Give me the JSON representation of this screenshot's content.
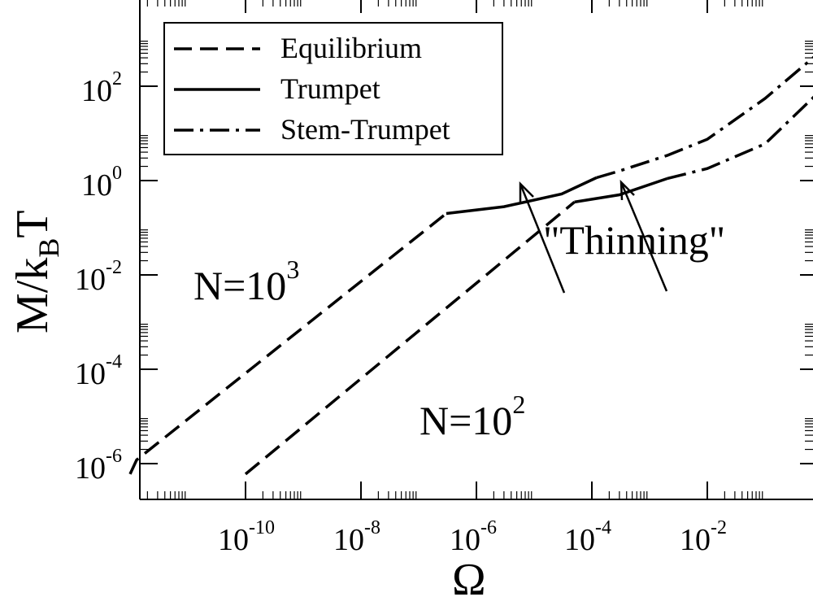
{
  "chart_data": {
    "type": "line",
    "title": "",
    "xlabel": "Ω",
    "ylabel": "M/k_BT",
    "ylabel_parts": {
      "main": "M/k",
      "subscript": "B",
      "tail": "T"
    },
    "x_scale": "log",
    "y_scale": "log",
    "xlim": [
      1e-12,
      1
    ],
    "ylim": [
      3e-07,
      5000
    ],
    "x_ticks": [
      {
        "base": "10",
        "exp": "-10",
        "value": 1e-10
      },
      {
        "base": "10",
        "exp": "-8",
        "value": 1e-08
      },
      {
        "base": "10",
        "exp": "-6",
        "value": 1e-06
      },
      {
        "base": "10",
        "exp": "-4",
        "value": 0.0001
      },
      {
        "base": "10",
        "exp": "-2",
        "value": 0.01
      }
    ],
    "y_ticks": [
      {
        "base": "10",
        "exp": "-6",
        "value": 1e-06
      },
      {
        "base": "10",
        "exp": "-4",
        "value": 0.0001
      },
      {
        "base": "10",
        "exp": "-2",
        "value": 0.01
      },
      {
        "base": "10",
        "exp": "0",
        "value": 1
      },
      {
        "base": "10",
        "exp": "2",
        "value": 100
      }
    ],
    "legend": {
      "placement": "top-left",
      "entries": [
        {
          "label": "Equilibrium",
          "style": "dashed"
        },
        {
          "label": "Trumpet",
          "style": "solid"
        },
        {
          "label": "Stem-Trumpet",
          "style": "dashdot"
        }
      ]
    },
    "series": [
      {
        "name": "Equilibrium",
        "group": "N=10^3",
        "style": "dashed",
        "x": [
          1e-12,
          1.3e-12,
          3e-07
        ],
        "y": [
          6e-07,
          1.2e-06,
          0.2
        ]
      },
      {
        "name": "Trumpet",
        "group": "N=10^3",
        "style": "solid",
        "x": [
          3e-07,
          3e-06,
          3e-05,
          0.00012
        ],
        "y": [
          0.2,
          0.28,
          0.52,
          1.15
        ]
      },
      {
        "name": "Stem-Trumpet",
        "group": "N=10^3",
        "style": "dashdot",
        "x": [
          0.00012,
          0.0003,
          0.002,
          0.01,
          0.1,
          1
        ],
        "y": [
          1.15,
          1.6,
          3.4,
          7.5,
          55,
          600
        ]
      },
      {
        "name": "Equilibrium",
        "group": "N=10^2",
        "style": "dashed",
        "x": [
          1e-10,
          5e-05
        ],
        "y": [
          6e-07,
          0.35
        ]
      },
      {
        "name": "Trumpet",
        "group": "N=10^2",
        "style": "solid",
        "x": [
          5e-05,
          0.0003,
          0.002
        ],
        "y": [
          0.35,
          0.5,
          1.1
        ]
      },
      {
        "name": "Stem-Trumpet",
        "group": "N=10^2",
        "style": "dashdot",
        "x": [
          0.002,
          0.01,
          0.1,
          1
        ],
        "y": [
          1.1,
          1.8,
          6,
          90
        ]
      }
    ],
    "annotations": [
      {
        "base": "N=10",
        "exp": "3"
      },
      {
        "base": "N=10",
        "exp": "2"
      },
      {
        "text": "\"Thinning\"",
        "arrows": 2
      }
    ]
  }
}
